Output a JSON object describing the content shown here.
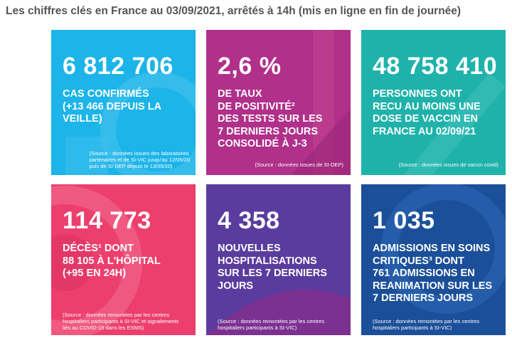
{
  "title": "Les chiffres clés en France au 03/09/2021, arrêtés à 14h (mis en ligne en fin de journée)",
  "tiles": [
    {
      "number": "6 812 706",
      "lines": [
        "CAS CONFIRMÉS",
        "(+13 466 DEPUIS LA",
        "VEILLE)"
      ],
      "source": [
        "(Source : données issues des laboratoires",
        "partenaires et de SI-VIC jusqu'au 12/05/20",
        "puis de SI-DEP depuis le 13/05/20)"
      ]
    },
    {
      "number": "2,6 %",
      "lines": [
        "DE TAUX",
        "DE POSITIVITÉ²",
        "DES TESTS SUR LES",
        "7 DERNIERS JOURS",
        "CONSOLIDÉ À J-3"
      ],
      "source": [
        "(Source : données issues de SI-DEP)"
      ]
    },
    {
      "number": "48 758 410",
      "lines": [
        "PERSONNES ONT",
        "RECU AU MOINS UNE",
        "DOSE DE VACCIN EN",
        "FRANCE AU 02/09/21"
      ],
      "source": [
        "(Source : données issues de vaccin covid)"
      ]
    },
    {
      "number": "114 773",
      "lines": [
        "DÉCÈS¹ DONT",
        "88 105 À L'HÔPITAL",
        "(+95 EN 24H)"
      ],
      "source": [
        "(Source : données remontées par les centres",
        "hospitaliers participants à SI-VIC et signalements",
        "liés au COVID-19 dans les ESMS)"
      ]
    },
    {
      "number": "4 358",
      "lines": [
        "NOUVELLES",
        "HOSPITALISATIONS",
        "SUR LES 7 DERNIERS",
        "JOURS"
      ],
      "source": [
        "(Source : données remontées par les centres",
        "hospitaliers participants à SI-VIC)"
      ]
    },
    {
      "number": "1 035",
      "lines": [
        "ADMISSIONS EN SOINS",
        "CRITIQUES³ DONT",
        "761 ADMISSIONS EN",
        "REANIMATION SUR LES",
        "7 DERNIERS JOURS"
      ],
      "source": [
        "(Source : données remontées par les centres",
        "hospitaliers participants à SI-VIC)"
      ]
    }
  ]
}
